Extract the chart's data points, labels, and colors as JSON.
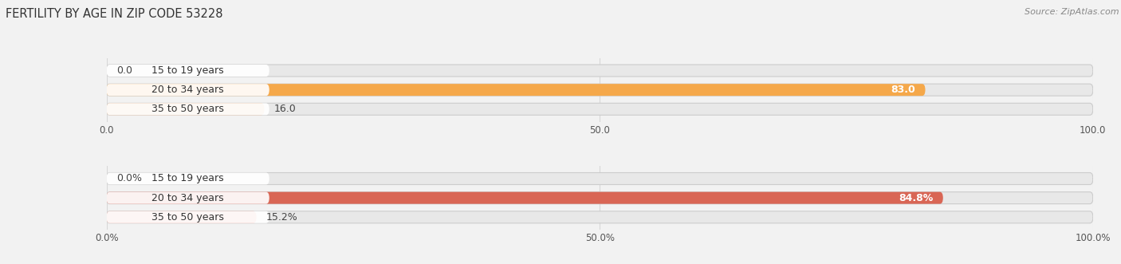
{
  "title": "FERTILITY BY AGE IN ZIP CODE 53228",
  "source": "Source: ZipAtlas.com",
  "top_chart": {
    "categories": [
      "15 to 19 years",
      "20 to 34 years",
      "35 to 50 years"
    ],
    "values": [
      0.0,
      83.0,
      16.0
    ],
    "bar_colors": [
      "#f0b888",
      "#f5a84a",
      "#f0b888"
    ],
    "bg_bar_color": "#e8e8e8",
    "label_bg_color": "#ffffff",
    "xlim": [
      0,
      100
    ],
    "xticks": [
      0.0,
      50.0,
      100.0
    ],
    "xtick_labels": [
      "0.0",
      "50.0",
      "100.0"
    ]
  },
  "bottom_chart": {
    "categories": [
      "15 to 19 years",
      "20 to 34 years",
      "35 to 50 years"
    ],
    "values": [
      0.0,
      84.8,
      15.2
    ],
    "bar_colors": [
      "#e89888",
      "#d96655",
      "#e89888"
    ],
    "bg_bar_color": "#e8e8e8",
    "label_bg_color": "#ffffff",
    "xlim": [
      0,
      100
    ],
    "xticks": [
      0.0,
      50.0,
      100.0
    ],
    "xtick_labels": [
      "0.0%",
      "50.0%",
      "100.0%"
    ]
  },
  "bg_color": "#f2f2f2",
  "title_fontsize": 10.5,
  "source_fontsize": 8,
  "label_fontsize": 9,
  "value_fontsize": 9,
  "tick_fontsize": 8.5
}
